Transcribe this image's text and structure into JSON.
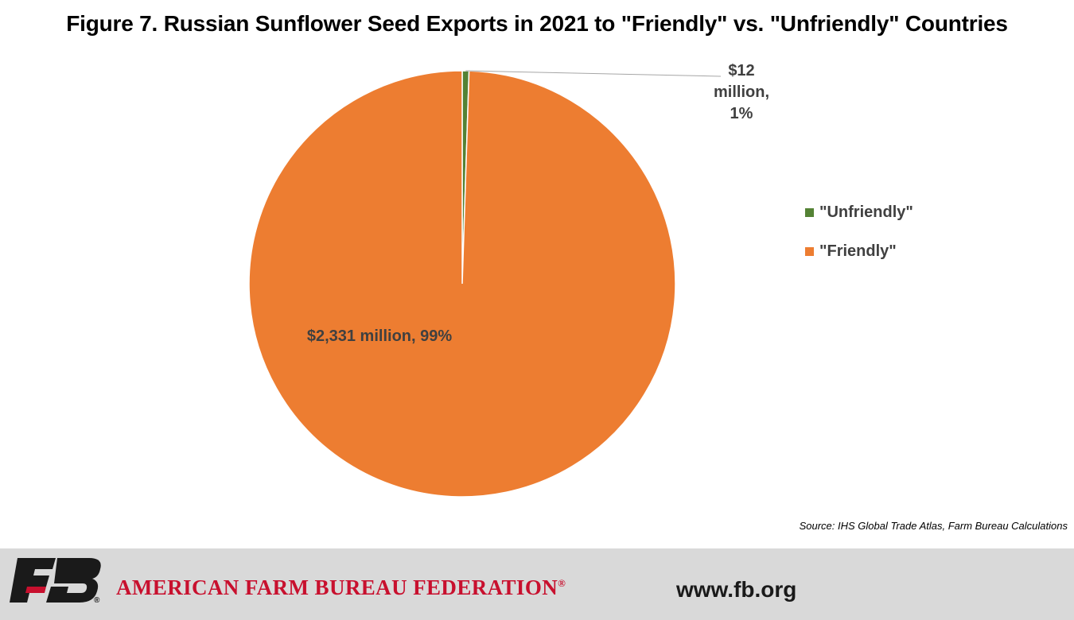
{
  "chart_data": {
    "type": "pie",
    "title": "Figure 7. Russian Sunflower Seed Exports in 2021 to \"Friendly\"  vs. \"Unfriendly\" Countries",
    "unit": "$ million",
    "slices": [
      {
        "name": "\"Unfriendly\"",
        "value": 12,
        "percent": 1,
        "label_lines": [
          "$12",
          "million,",
          "1%"
        ],
        "color": "#548235"
      },
      {
        "name": "\"Friendly\"",
        "value": 2331,
        "percent": 99,
        "label_lines": [
          "$2,331 million, 99%"
        ],
        "color": "#ed7d31"
      }
    ],
    "legend_position": "right",
    "start_angle": "top, clockwise"
  },
  "source": "Source: IHS Global Trade Atlas, Farm Bureau Calculations",
  "footer": {
    "org_name": "AMERICAN FARM BUREAU FEDERATION",
    "registered_mark": "®",
    "logo_text": "FB",
    "website": "www.fb.org",
    "brand_red": "#c8102e",
    "logo_dark": "#1a1a1a",
    "background": "#d9d9d9"
  }
}
